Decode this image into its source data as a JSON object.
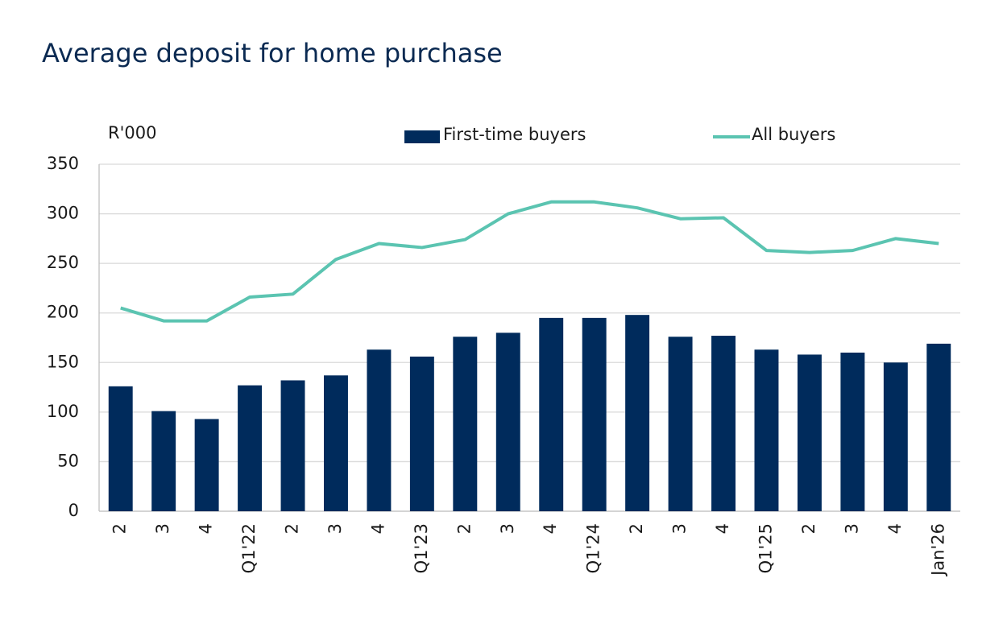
{
  "chart_data": {
    "type": "bar-line",
    "title": "Average deposit for home purchase",
    "y_label": "R'000",
    "categories": [
      "2",
      "3",
      "4",
      "Q1'22",
      "2",
      "3",
      "4",
      "Q1'23",
      "2",
      "3",
      "4",
      "Q1'24",
      "2",
      "3",
      "4",
      "Q1'25",
      "2",
      "3",
      "4",
      "Jan'26"
    ],
    "series": [
      {
        "name": "First-time buyers",
        "type": "bar",
        "color": "#002b5c",
        "values": [
          126,
          101,
          93,
          127,
          132,
          137,
          163,
          156,
          176,
          180,
          195,
          195,
          198,
          176,
          177,
          163,
          158,
          160,
          150,
          169
        ]
      },
      {
        "name": "All buyers",
        "type": "line",
        "color": "#5bc4b1",
        "values": [
          205,
          192,
          192,
          216,
          219,
          254,
          270,
          266,
          274,
          300,
          312,
          312,
          306,
          295,
          296,
          263,
          261,
          263,
          275,
          270
        ]
      }
    ],
    "ylim": [
      0,
      350
    ],
    "yticks": [
      0,
      50,
      100,
      150,
      200,
      250,
      300,
      350
    ],
    "grid": true
  }
}
